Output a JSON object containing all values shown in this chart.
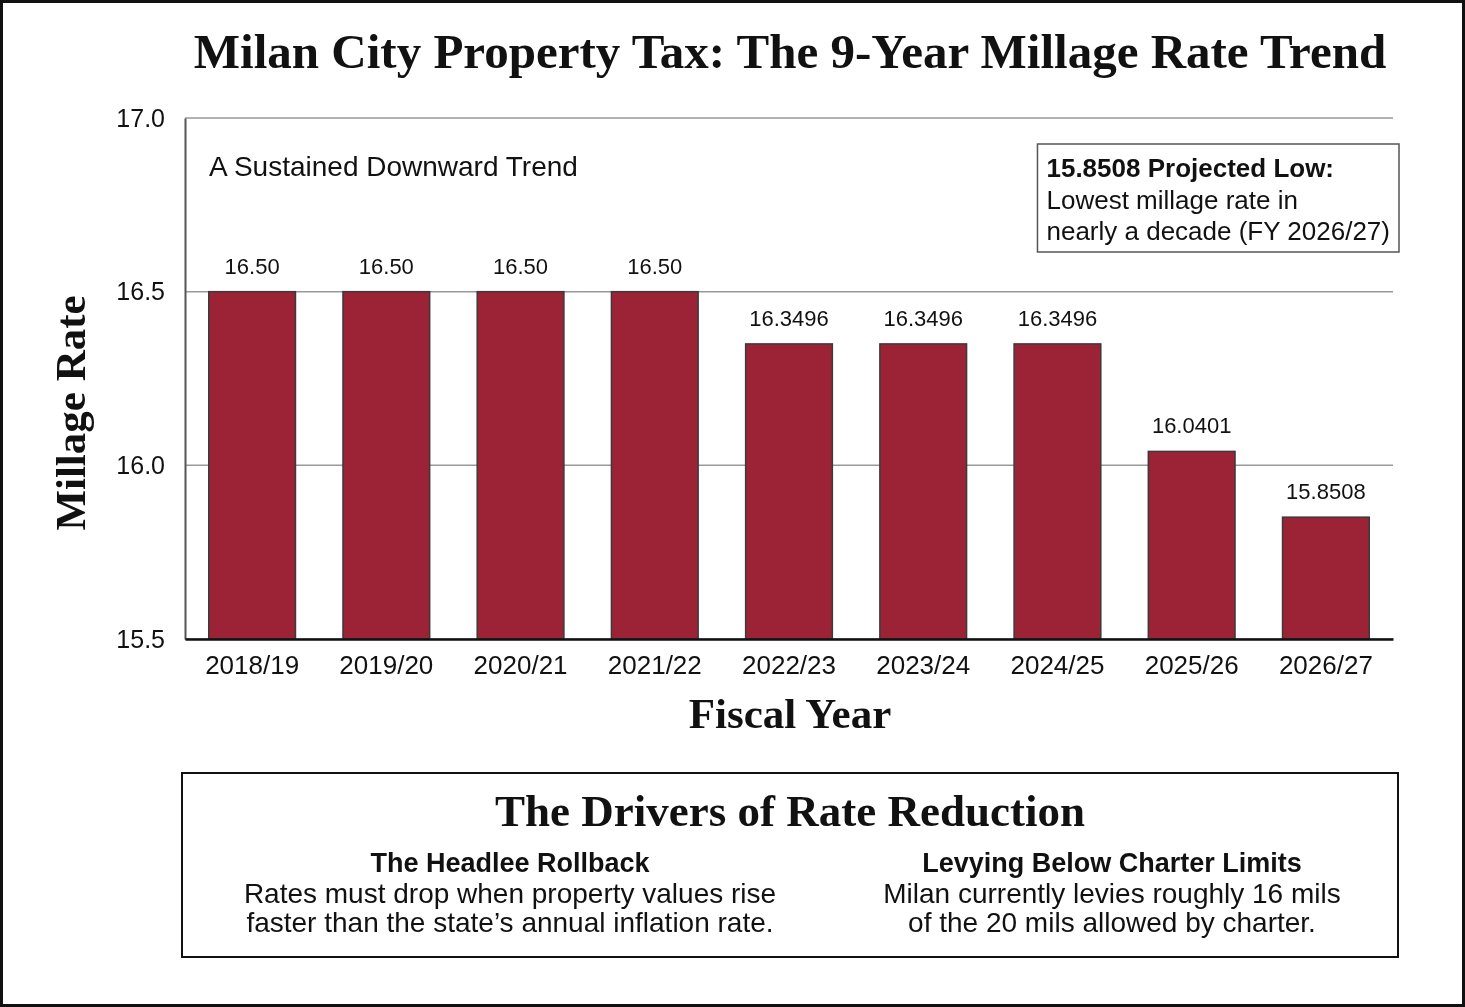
{
  "chart_data": {
    "type": "bar",
    "title": "Milan City Property Tax: The 9-Year Millage Rate Trend",
    "subtitle": "A Sustained Downward Trend",
    "xlabel": "Fiscal Year",
    "ylabel": "Millage Rate",
    "categories": [
      "2018/19",
      "2019/20",
      "2020/21",
      "2021/22",
      "2022/23",
      "2023/24",
      "2024/25",
      "2025/26",
      "2026/27"
    ],
    "values": [
      16.5,
      16.5,
      16.5,
      16.5,
      16.3496,
      16.3496,
      16.3496,
      16.0401,
      15.8508
    ],
    "value_labels": [
      "16.50",
      "16.50",
      "16.50",
      "16.50",
      "16.3496",
      "16.3496",
      "16.3496",
      "16.0401",
      "15.8508"
    ],
    "color": "#9b2335",
    "ylim": [
      15.5,
      17.0
    ],
    "yticks": [
      {
        "value": 15.5,
        "label": "15.5"
      },
      {
        "value": 16,
        "label": "16.0"
      },
      {
        "value": 16.5,
        "label": "16.5"
      },
      {
        "value": 17,
        "label": "17.0"
      }
    ],
    "grid": "y",
    "annotations": [
      "15.8508 Projected Low:",
      "Lowest millage rate in nearly a decade (FY 2026/27)",
      "The Drivers of Rate Reduction",
      "The Headlee Rollback",
      "Rates must drop when property values rise faster than the state’s annual inflation rate.",
      "Levying Below Charter Limits",
      "Milan currently levies roughly 16 mils of the 20 mils allowed by charter."
    ]
  }
}
